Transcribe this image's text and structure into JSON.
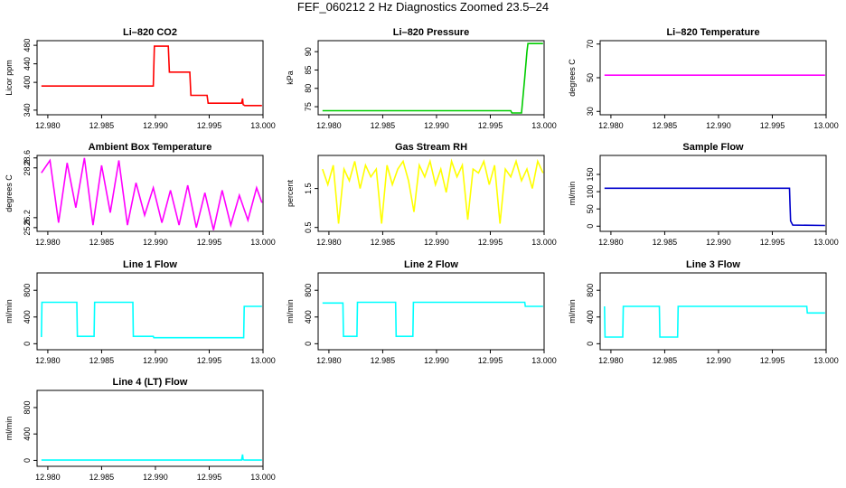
{
  "page": {
    "title": "FEF_060212  2 Hz Diagnostics Zoomed 23.5–24"
  },
  "chart_data": [
    {
      "type": "line",
      "title": "Li–820 CO2",
      "xlabel": "",
      "ylabel": "Licor ppm",
      "color": "#ff0000",
      "xlim": [
        12.979,
        13.0
      ],
      "ylim": [
        330,
        490
      ],
      "xticks": [
        12.98,
        12.985,
        12.99,
        12.995,
        13.0
      ],
      "xtick_labels": [
        "12.980",
        "12.985",
        "12.990",
        "12.995",
        "13.000"
      ],
      "yticks": [
        340,
        400,
        440,
        480
      ],
      "ytick_labels": [
        "340",
        "400",
        "440",
        "480"
      ],
      "series": [
        {
          "x": [
            12.9794,
            12.98,
            12.985,
            12.9898,
            12.9899,
            12.9912,
            12.9913,
            12.9932,
            12.9933,
            12.9948,
            12.9949,
            12.998,
            12.9981,
            12.99815,
            12.9983,
            12.9999
          ],
          "y": [
            392,
            392,
            392,
            392,
            478,
            478,
            422,
            422,
            372,
            372,
            355,
            355,
            365,
            352,
            350,
            350
          ]
        }
      ]
    },
    {
      "type": "line",
      "title": "Li–820 Pressure",
      "xlabel": "",
      "ylabel": "kPa",
      "color": "#00cc00",
      "xlim": [
        12.979,
        13.0
      ],
      "ylim": [
        72.8,
        93
      ],
      "xticks": [
        12.98,
        12.985,
        12.99,
        12.995,
        13.0
      ],
      "xtick_labels": [
        "12.980",
        "12.985",
        "12.990",
        "12.995",
        "13.000"
      ],
      "yticks": [
        75,
        80,
        85,
        90
      ],
      "ytick_labels": [
        "75",
        "80",
        "85",
        "90"
      ],
      "series": [
        {
          "x": [
            12.9794,
            12.9969,
            12.997,
            12.9979,
            12.9982,
            12.9984,
            12.9985,
            12.9999
          ],
          "y": [
            73.9,
            73.9,
            73.3,
            73.3,
            83,
            90,
            92.2,
            92.2
          ]
        }
      ]
    },
    {
      "type": "line",
      "title": "Li–820 Temperature",
      "xlabel": "",
      "ylabel": "degrees C",
      "color": "#ff00ff",
      "xlim": [
        12.979,
        13.0
      ],
      "ylim": [
        28,
        72
      ],
      "xticks": [
        12.98,
        12.985,
        12.99,
        12.995,
        13.0
      ],
      "xtick_labels": [
        "12.980",
        "12.985",
        "12.990",
        "12.995",
        "13.000"
      ],
      "yticks": [
        30,
        50,
        70
      ],
      "ytick_labels": [
        "30",
        "50",
        "70"
      ],
      "series": [
        {
          "x": [
            12.9794,
            12.9999
          ],
          "y": [
            51.5,
            51.5
          ]
        }
      ]
    },
    {
      "type": "line",
      "title": "Ambient Box Temperature",
      "xlabel": "",
      "ylabel": "degrees C",
      "color": "#ff00ff",
      "xlim": [
        12.979,
        13.0
      ],
      "ylim": [
        25.65,
        28.7
      ],
      "xticks": [
        12.98,
        12.985,
        12.99,
        12.995,
        13.0
      ],
      "xtick_labels": [
        "12.980",
        "12.985",
        "12.990",
        "12.995",
        "13.000"
      ],
      "yticks": [
        25.8,
        26.2,
        28.2,
        28.6
      ],
      "ytick_labels": [
        "25.8",
        "26.2",
        "28.2",
        "28.6"
      ],
      "series": [
        {
          "x": [
            12.9794,
            12.9802,
            12.981,
            12.9818,
            12.9826,
            12.9834,
            12.9842,
            12.985,
            12.9858,
            12.9866,
            12.9874,
            12.9882,
            12.989,
            12.9898,
            12.9906,
            12.9914,
            12.9922,
            12.993,
            12.9938,
            12.9946,
            12.9954,
            12.9962,
            12.997,
            12.9978,
            12.9986,
            12.9994,
            12.9999
          ],
          "y": [
            28.0,
            28.5,
            26.0,
            28.4,
            26.6,
            28.6,
            25.9,
            28.3,
            26.4,
            28.5,
            25.9,
            27.6,
            26.3,
            27.4,
            26.0,
            27.3,
            25.9,
            27.5,
            25.8,
            27.2,
            25.7,
            27.3,
            25.9,
            27.1,
            26.1,
            27.4,
            26.8
          ]
        }
      ]
    },
    {
      "type": "line",
      "title": "Gas Stream RH",
      "xlabel": "",
      "ylabel": "percent",
      "color": "#ffff00",
      "xlim": [
        12.979,
        13.0
      ],
      "ylim": [
        0.4,
        2.35
      ],
      "xticks": [
        12.98,
        12.985,
        12.99,
        12.995,
        13.0
      ],
      "xtick_labels": [
        "12.980",
        "12.985",
        "12.990",
        "12.995",
        "13.000"
      ],
      "yticks": [
        0.5,
        1.5
      ],
      "ytick_labels": [
        "0.5",
        "1.5"
      ],
      "series": [
        {
          "x": [
            12.9794,
            12.9799,
            12.9804,
            12.9809,
            12.9814,
            12.9819,
            12.9824,
            12.9829,
            12.9834,
            12.9839,
            12.9844,
            12.9849,
            12.9854,
            12.9859,
            12.9864,
            12.9869,
            12.9874,
            12.9879,
            12.9884,
            12.9889,
            12.9894,
            12.9899,
            12.9904,
            12.9909,
            12.9914,
            12.9919,
            12.9924,
            12.9929,
            12.9934,
            12.9939,
            12.9944,
            12.9949,
            12.9954,
            12.9959,
            12.9964,
            12.9969,
            12.9974,
            12.9979,
            12.9984,
            12.9989,
            12.9994,
            12.9999
          ],
          "y": [
            2.0,
            1.6,
            2.1,
            0.6,
            2.0,
            1.7,
            2.2,
            1.5,
            2.1,
            1.8,
            2.0,
            0.6,
            2.1,
            1.6,
            2.0,
            2.2,
            1.7,
            0.9,
            2.1,
            1.8,
            2.2,
            1.6,
            2.0,
            1.4,
            2.2,
            1.8,
            2.1,
            0.7,
            2.0,
            1.9,
            2.2,
            1.6,
            2.1,
            0.6,
            2.0,
            1.8,
            2.2,
            1.7,
            2.0,
            1.5,
            2.2,
            1.9
          ]
        }
      ]
    },
    {
      "type": "line",
      "title": "Sample Flow",
      "xlabel": "",
      "ylabel": "ml/min",
      "color": "#0000cc",
      "xlim": [
        12.979,
        13.0
      ],
      "ylim": [
        -15,
        205
      ],
      "xticks": [
        12.98,
        12.985,
        12.99,
        12.995,
        13.0
      ],
      "xtick_labels": [
        "12.980",
        "12.985",
        "12.990",
        "12.995",
        "13.000"
      ],
      "yticks": [
        0,
        50,
        100,
        150
      ],
      "ytick_labels": [
        "0",
        "50",
        "100",
        "150"
      ],
      "series": [
        {
          "x": [
            12.9794,
            12.9966,
            12.99665,
            12.9967,
            12.9969,
            12.9999
          ],
          "y": [
            110,
            110,
            60,
            15,
            3,
            2
          ]
        }
      ]
    },
    {
      "type": "line",
      "title": "Line 1 Flow",
      "xlabel": "",
      "ylabel": "ml/min",
      "color": "#00ffff",
      "xlim": [
        12.979,
        13.0
      ],
      "ylim": [
        -90,
        1060
      ],
      "xticks": [
        12.98,
        12.985,
        12.99,
        12.995,
        13.0
      ],
      "xtick_labels": [
        "12.980",
        "12.985",
        "12.990",
        "12.995",
        "13.000"
      ],
      "yticks": [
        0,
        400,
        800
      ],
      "ytick_labels": [
        "0",
        "400",
        "800"
      ],
      "series": [
        {
          "x": [
            12.9794,
            12.97945,
            12.9827,
            12.98275,
            12.9843,
            12.98435,
            12.9879,
            12.98795,
            12.9898,
            12.98985,
            12.9982,
            12.99825,
            12.9999
          ],
          "y": [
            100,
            620,
            620,
            110,
            110,
            620,
            620,
            110,
            110,
            90,
            90,
            560,
            560
          ]
        }
      ]
    },
    {
      "type": "line",
      "title": "Line 2 Flow",
      "xlabel": "",
      "ylabel": "ml/min",
      "color": "#00ffff",
      "xlim": [
        12.979,
        13.0
      ],
      "ylim": [
        -90,
        1060
      ],
      "xticks": [
        12.98,
        12.985,
        12.99,
        12.995,
        13.0
      ],
      "xtick_labels": [
        "12.980",
        "12.985",
        "12.990",
        "12.995",
        "13.000"
      ],
      "yticks": [
        0,
        400,
        800
      ],
      "ytick_labels": [
        "0",
        "400",
        "800"
      ],
      "series": [
        {
          "x": [
            12.9794,
            12.9813,
            12.98135,
            12.9826,
            12.98265,
            12.9862,
            12.98625,
            12.9878,
            12.98785,
            12.9982,
            12.99825,
            12.9999
          ],
          "y": [
            610,
            610,
            110,
            110,
            620,
            620,
            110,
            110,
            620,
            620,
            560,
            560
          ]
        }
      ]
    },
    {
      "type": "line",
      "title": "Line 3 Flow",
      "xlabel": "",
      "ylabel": "ml/min",
      "color": "#00ffff",
      "xlim": [
        12.979,
        13.0
      ],
      "ylim": [
        -90,
        1060
      ],
      "xticks": [
        12.98,
        12.985,
        12.99,
        12.995,
        13.0
      ],
      "xtick_labels": [
        "12.980",
        "12.985",
        "12.990",
        "12.995",
        "13.000"
      ],
      "yticks": [
        0,
        400,
        800
      ],
      "ytick_labels": [
        "0",
        "400",
        "800"
      ],
      "series": [
        {
          "x": [
            12.9794,
            12.97945,
            12.9811,
            12.98115,
            12.9845,
            12.98455,
            12.9862,
            12.98625,
            12.9982,
            12.99825,
            12.9999
          ],
          "y": [
            560,
            100,
            100,
            560,
            560,
            100,
            100,
            560,
            560,
            460,
            460
          ]
        }
      ]
    },
    {
      "type": "line",
      "title": "Line 4 (LT) Flow",
      "xlabel": "",
      "ylabel": "ml/min",
      "color": "#00ffff",
      "xlim": [
        12.979,
        13.0
      ],
      "ylim": [
        -90,
        1060
      ],
      "xticks": [
        12.98,
        12.985,
        12.99,
        12.995,
        13.0
      ],
      "xtick_labels": [
        "12.980",
        "12.985",
        "12.990",
        "12.995",
        "13.000"
      ],
      "yticks": [
        0,
        400,
        800
      ],
      "ytick_labels": [
        "0",
        "400",
        "800"
      ],
      "series": [
        {
          "x": [
            12.9794,
            12.998,
            12.9981,
            12.99815,
            12.9983,
            12.9999
          ],
          "y": [
            5,
            5,
            90,
            10,
            5,
            5
          ]
        }
      ]
    }
  ]
}
